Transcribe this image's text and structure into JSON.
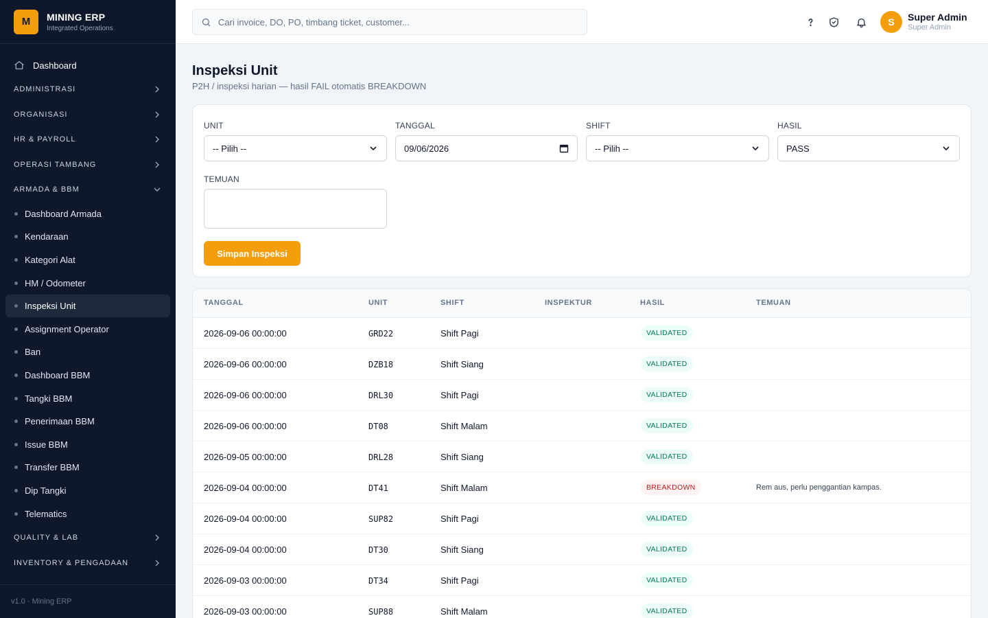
{
  "brand": {
    "logo": "M",
    "name": "MINING ERP",
    "subtitle": "Integrated Operations"
  },
  "sidebar": {
    "dashboard_label": "Dashboard",
    "sections_top": [
      {
        "label": "ADMINISTRASI",
        "icon": "chevron-right-icon"
      },
      {
        "label": "ORGANISASI",
        "icon": "chevron-right-icon"
      },
      {
        "label": "HR & PAYROLL",
        "icon": "chevron-right-icon"
      },
      {
        "label": "OPERASI TAMBANG",
        "icon": "chevron-right-icon"
      },
      {
        "label": "ARMADA & BBM",
        "icon": "chevron-down-icon"
      }
    ],
    "armada_items": [
      {
        "label": "Dashboard Armada",
        "active": false
      },
      {
        "label": "Kendaraan",
        "active": false
      },
      {
        "label": "Kategori Alat",
        "active": false
      },
      {
        "label": "HM / Odometer",
        "active": false
      },
      {
        "label": "Inspeksi Unit",
        "active": true
      },
      {
        "label": "Assignment Operator",
        "active": false
      },
      {
        "label": "Ban",
        "active": false
      },
      {
        "label": "Dashboard BBM",
        "active": false
      },
      {
        "label": "Tangki BBM",
        "active": false
      },
      {
        "label": "Penerimaan BBM",
        "active": false
      },
      {
        "label": "Issue BBM",
        "active": false
      },
      {
        "label": "Transfer BBM",
        "active": false
      },
      {
        "label": "Dip Tangki",
        "active": false
      },
      {
        "label": "Telematics",
        "active": false
      }
    ],
    "sections_bottom": [
      {
        "label": "QUALITY & LAB",
        "icon": "chevron-right-icon"
      },
      {
        "label": "INVENTORY & PENGADAAN",
        "icon": "chevron-right-icon"
      }
    ],
    "footer": "v1.0 · Mining ERP"
  },
  "topbar": {
    "search_placeholder": "Cari invoice, DO, PO, timbang ticket, customer...",
    "icons": [
      "help-icon",
      "shield-check-icon",
      "bell-icon"
    ],
    "user": {
      "initial": "S",
      "name": "Super Admin",
      "role": "Super Admin"
    }
  },
  "page": {
    "title": "Inspeksi Unit",
    "subtitle": "P2H / inspeksi harian — hasil FAIL otomatis BREAKDOWN"
  },
  "form": {
    "unit_label": "UNIT",
    "unit_value": "-- Pilih --",
    "tanggal_label": "TANGGAL",
    "tanggal_value": "09/06/2026",
    "shift_label": "SHIFT",
    "shift_value": "-- Pilih --",
    "hasil_label": "HASIL",
    "hasil_value": "PASS",
    "temuan_label": "TEMUAN",
    "temuan_value": "",
    "save_label": "Simpan Inspeksi"
  },
  "table": {
    "headers": [
      "TANGGAL",
      "UNIT",
      "SHIFT",
      "INSPEKTUR",
      "HASIL",
      "TEMUAN"
    ],
    "rows": [
      {
        "tanggal": "2026-09-06 00:00:00",
        "unit": "GRD22",
        "shift": "Shift Pagi",
        "inspektur": "",
        "hasil": "VALIDATED",
        "temuan": ""
      },
      {
        "tanggal": "2026-09-06 00:00:00",
        "unit": "DZB18",
        "shift": "Shift Siang",
        "inspektur": "",
        "hasil": "VALIDATED",
        "temuan": ""
      },
      {
        "tanggal": "2026-09-06 00:00:00",
        "unit": "DRL30",
        "shift": "Shift Pagi",
        "inspektur": "",
        "hasil": "VALIDATED",
        "temuan": ""
      },
      {
        "tanggal": "2026-09-06 00:00:00",
        "unit": "DT08",
        "shift": "Shift Malam",
        "inspektur": "",
        "hasil": "VALIDATED",
        "temuan": ""
      },
      {
        "tanggal": "2026-09-05 00:00:00",
        "unit": "DRL28",
        "shift": "Shift Siang",
        "inspektur": "",
        "hasil": "VALIDATED",
        "temuan": ""
      },
      {
        "tanggal": "2026-09-04 00:00:00",
        "unit": "DT41",
        "shift": "Shift Malam",
        "inspektur": "",
        "hasil": "BREAKDOWN",
        "temuan": "Rem aus, perlu penggantian kampas."
      },
      {
        "tanggal": "2026-09-04 00:00:00",
        "unit": "SUP82",
        "shift": "Shift Pagi",
        "inspektur": "",
        "hasil": "VALIDATED",
        "temuan": ""
      },
      {
        "tanggal": "2026-09-04 00:00:00",
        "unit": "DT30",
        "shift": "Shift Siang",
        "inspektur": "",
        "hasil": "VALIDATED",
        "temuan": ""
      },
      {
        "tanggal": "2026-09-03 00:00:00",
        "unit": "DT34",
        "shift": "Shift Pagi",
        "inspektur": "",
        "hasil": "VALIDATED",
        "temuan": ""
      },
      {
        "tanggal": "2026-09-03 00:00:00",
        "unit": "SUP88",
        "shift": "Shift Malam",
        "inspektur": "",
        "hasil": "VALIDATED",
        "temuan": ""
      }
    ]
  },
  "colors": {
    "sidebar_bg": "#0f172a",
    "accent": "#f59e0b",
    "validated": "#047857",
    "breakdown": "#b91c1c"
  }
}
